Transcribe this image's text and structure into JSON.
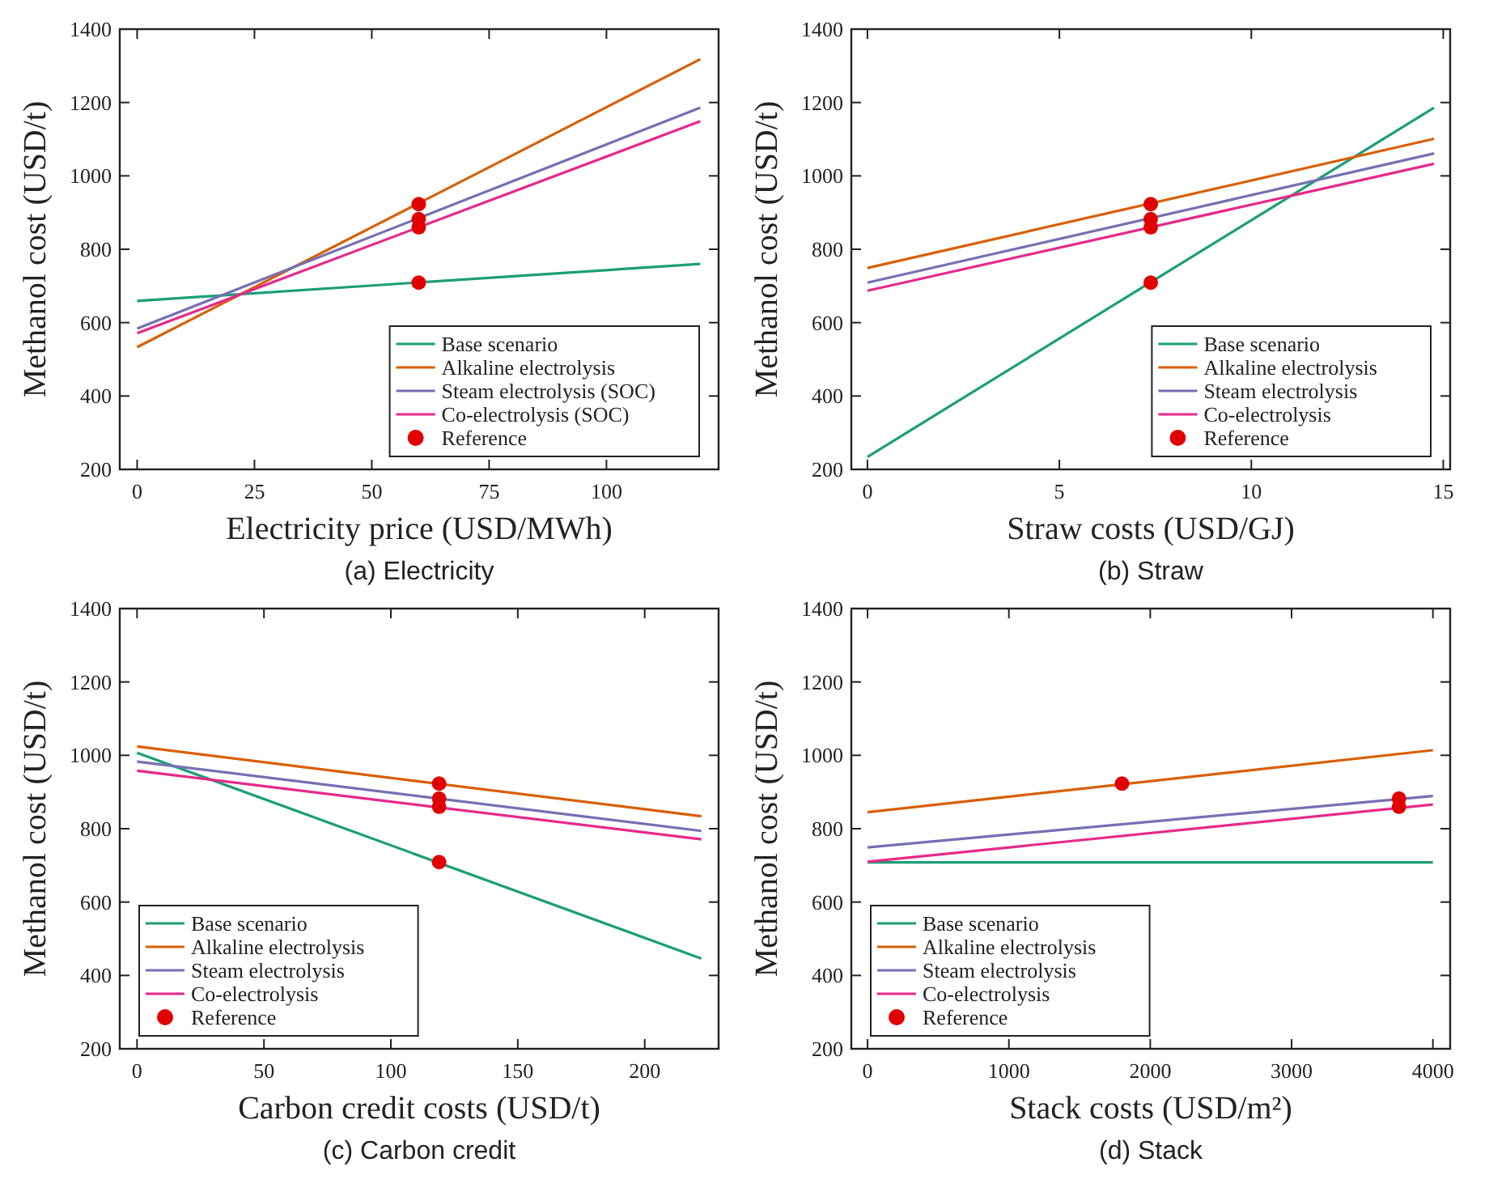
{
  "chart_data": [
    {
      "type": "line",
      "title": "(a) Electricity",
      "xlabel": "Electricity price (USD/MWh)",
      "ylabel": "Methanol cost (USD/t)",
      "xlim": [
        -3.7,
        123.9
      ],
      "xticks": [
        0,
        25,
        50,
        75,
        100
      ],
      "ylim": [
        200,
        1400
      ],
      "yticks": [
        200,
        400,
        600,
        800,
        1000,
        1200,
        1400
      ],
      "legend": "bottom right",
      "grid": false,
      "series": [
        {
          "name": "Base scenario",
          "color": "#1b9e77",
          "x": [
            0,
            120
          ],
          "values": [
            659,
            760
          ]
        },
        {
          "name": "Alkaline electrolysis",
          "color": "#d95f02",
          "x": [
            0,
            120
          ],
          "values": [
            533,
            1318
          ]
        },
        {
          "name": "Steam electrolysis (SOC)",
          "color": "#7570b3",
          "x": [
            0,
            120
          ],
          "values": [
            584,
            1186
          ]
        },
        {
          "name": "Co-electrolysis (SOC)",
          "color": "#e7298a",
          "x": [
            0,
            120
          ],
          "values": [
            571,
            1149
          ]
        },
        {
          "name": "Reference",
          "type": "scatter",
          "marker": "circle",
          "color": "#e00000",
          "x": [
            60,
            60,
            60,
            60
          ],
          "values": [
            709,
            923,
            882,
            860
          ]
        }
      ]
    },
    {
      "type": "line",
      "title": "(b) Straw",
      "xlabel": "Straw costs (USD/GJ)",
      "ylabel": "Methanol cost (USD/t)",
      "xlim": [
        -0.42,
        15.18
      ],
      "xticks": [
        0,
        5,
        10,
        15
      ],
      "ylim": [
        200,
        1400
      ],
      "yticks": [
        200,
        400,
        600,
        800,
        1000,
        1200,
        1400
      ],
      "legend": "bottom right",
      "grid": false,
      "series": [
        {
          "name": "Base scenario",
          "color": "#1b9e77",
          "x": [
            0,
            14.76
          ],
          "values": [
            234,
            1186
          ]
        },
        {
          "name": "Alkaline electrolysis",
          "color": "#d95f02",
          "x": [
            0,
            14.76
          ],
          "values": [
            749,
            1101
          ]
        },
        {
          "name": "Steam electrolysis",
          "color": "#7570b3",
          "x": [
            0,
            14.76
          ],
          "values": [
            709,
            1061
          ]
        },
        {
          "name": "Co-electrolysis",
          "color": "#e7298a",
          "x": [
            0,
            14.76
          ],
          "values": [
            687,
            1033
          ]
        },
        {
          "name": "Reference",
          "type": "scatter",
          "marker": "circle",
          "color": "#e00000",
          "x": [
            7.38,
            7.38,
            7.38,
            7.38
          ],
          "values": [
            709,
            923,
            882,
            860
          ]
        }
      ]
    },
    {
      "type": "line",
      "title": "(c) Carbon credit",
      "xlabel": "Carbon credit costs (USD/t)",
      "ylabel": "Methanol cost (USD/t)",
      "xlim": [
        -6.8,
        229.1
      ],
      "xticks": [
        0,
        50,
        100,
        150,
        200
      ],
      "ylim": [
        200,
        1400
      ],
      "yticks": [
        200,
        400,
        600,
        800,
        1000,
        1200,
        1400
      ],
      "legend": "bottom left",
      "grid": false,
      "series": [
        {
          "name": "Base scenario",
          "color": "#1b9e77",
          "x": [
            0,
            222.3
          ],
          "values": [
            1007,
            446
          ]
        },
        {
          "name": "Alkaline electrolysis",
          "color": "#d95f02",
          "x": [
            0,
            222.3
          ],
          "values": [
            1024,
            834
          ]
        },
        {
          "name": "Steam electrolysis",
          "color": "#7570b3",
          "x": [
            0,
            222.3
          ],
          "values": [
            983,
            794
          ]
        },
        {
          "name": "Co-electrolysis",
          "color": "#e7298a",
          "x": [
            0,
            222.3
          ],
          "values": [
            958,
            771
          ]
        },
        {
          "name": "Reference",
          "type": "scatter",
          "marker": "circle",
          "color": "#e00000",
          "x": [
            119,
            119,
            119,
            119
          ],
          "values": [
            709,
            923,
            882,
            860
          ]
        }
      ]
    },
    {
      "type": "line",
      "title": "(d) Stack",
      "xlabel": "Stack costs (USD/m²)",
      "ylabel": "Methanol cost (USD/t)",
      "xlim": [
        -115,
        4122
      ],
      "xticks": [
        0,
        1000,
        2000,
        3000,
        4000
      ],
      "ylim": [
        200,
        1400
      ],
      "yticks": [
        200,
        400,
        600,
        800,
        1000,
        1200,
        1400
      ],
      "legend": "bottom left",
      "grid": false,
      "series": [
        {
          "name": "Base scenario",
          "color": "#1b9e77",
          "x": [
            0,
            4000
          ],
          "values": [
            708,
            708
          ]
        },
        {
          "name": "Alkaline electrolysis",
          "color": "#d95f02",
          "x": [
            0,
            4000
          ],
          "values": [
            845,
            1014
          ]
        },
        {
          "name": "Steam electrolysis",
          "color": "#7570b3",
          "x": [
            0,
            4000
          ],
          "values": [
            749,
            889
          ]
        },
        {
          "name": "Co-electrolysis",
          "color": "#e7298a",
          "x": [
            0,
            4000
          ],
          "values": [
            710,
            866
          ]
        },
        {
          "name": "Reference",
          "type": "scatter",
          "marker": "circle",
          "color": "#e00000",
          "x": [
            1800,
            3760,
            3760
          ],
          "values": [
            923,
            882,
            860
          ]
        }
      ]
    }
  ]
}
